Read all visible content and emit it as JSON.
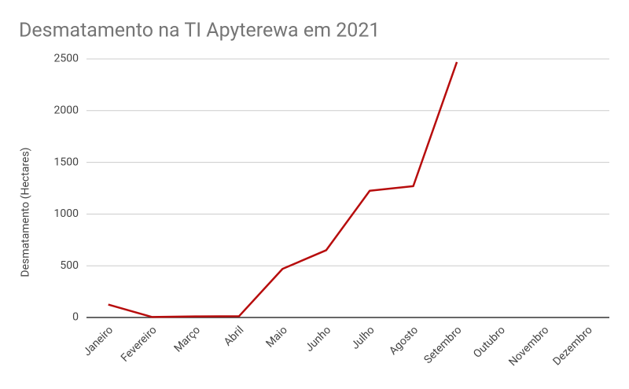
{
  "chart_data": {
    "type": "line",
    "title": "Desmatamento na TI Apyterewa em 2021",
    "y_label": "Desmatamento (Hectares)",
    "categories": [
      "Janeiro",
      "Fevereiro",
      "Março",
      "Abril",
      "Maio",
      "Junho",
      "Julho",
      "Agosto",
      "Setembro",
      "Outubro",
      "Novembro",
      "Dezembro"
    ],
    "values": [
      125,
      5,
      10,
      12,
      470,
      650,
      1225,
      1270,
      2470,
      null,
      null,
      null
    ],
    "color": "#b70d0d",
    "ylim": [
      0,
      2500
    ],
    "yticks": [
      0,
      500,
      1000,
      1500,
      2000,
      2500
    ],
    "grid": true
  }
}
